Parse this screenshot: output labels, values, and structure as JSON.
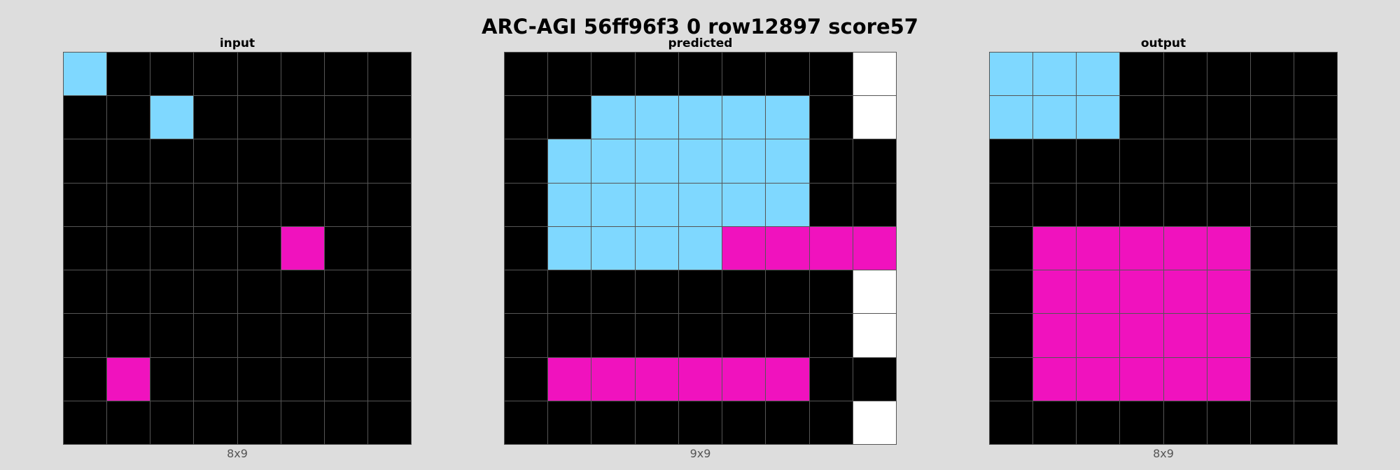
{
  "header": {
    "title": "ARC-AGI 56ff96f3 0 row12897 score57"
  },
  "palette": {
    "0": "#000000",
    "8": "#7fd8ff",
    "6": "#f012be",
    "w": "#ffffff"
  },
  "panels": [
    {
      "title": "input",
      "dims": "8x9",
      "rows": [
        [
          8,
          0,
          0,
          0,
          0,
          0,
          0,
          0
        ],
        [
          0,
          0,
          8,
          0,
          0,
          0,
          0,
          0
        ],
        [
          0,
          0,
          0,
          0,
          0,
          0,
          0,
          0
        ],
        [
          0,
          0,
          0,
          0,
          0,
          0,
          0,
          0
        ],
        [
          0,
          0,
          0,
          0,
          0,
          6,
          0,
          0
        ],
        [
          0,
          0,
          0,
          0,
          0,
          0,
          0,
          0
        ],
        [
          0,
          0,
          0,
          0,
          0,
          0,
          0,
          0
        ],
        [
          0,
          6,
          0,
          0,
          0,
          0,
          0,
          0
        ],
        [
          0,
          0,
          0,
          0,
          0,
          0,
          0,
          0
        ]
      ]
    },
    {
      "title": "predicted",
      "dims": "9x9",
      "rows": [
        [
          0,
          0,
          0,
          0,
          0,
          0,
          0,
          0,
          "w"
        ],
        [
          0,
          0,
          8,
          8,
          8,
          8,
          8,
          0,
          "w"
        ],
        [
          0,
          8,
          8,
          8,
          8,
          8,
          8,
          0,
          0
        ],
        [
          0,
          8,
          8,
          8,
          8,
          8,
          8,
          0,
          0
        ],
        [
          0,
          8,
          8,
          8,
          8,
          6,
          6,
          6,
          6
        ],
        [
          0,
          0,
          0,
          0,
          0,
          0,
          0,
          0,
          "w"
        ],
        [
          0,
          0,
          0,
          0,
          0,
          0,
          0,
          0,
          "w"
        ],
        [
          0,
          6,
          6,
          6,
          6,
          6,
          6,
          0,
          0
        ],
        [
          0,
          0,
          0,
          0,
          0,
          0,
          0,
          0,
          "w"
        ]
      ]
    },
    {
      "title": "output",
      "dims": "8x9",
      "rows": [
        [
          8,
          8,
          8,
          0,
          0,
          0,
          0,
          0
        ],
        [
          8,
          8,
          8,
          0,
          0,
          0,
          0,
          0
        ],
        [
          0,
          0,
          0,
          0,
          0,
          0,
          0,
          0
        ],
        [
          0,
          0,
          0,
          0,
          0,
          0,
          0,
          0
        ],
        [
          0,
          6,
          6,
          6,
          6,
          6,
          0,
          0
        ],
        [
          0,
          6,
          6,
          6,
          6,
          6,
          0,
          0
        ],
        [
          0,
          6,
          6,
          6,
          6,
          6,
          0,
          0
        ],
        [
          0,
          6,
          6,
          6,
          6,
          6,
          0,
          0
        ],
        [
          0,
          0,
          0,
          0,
          0,
          0,
          0,
          0
        ]
      ]
    }
  ]
}
